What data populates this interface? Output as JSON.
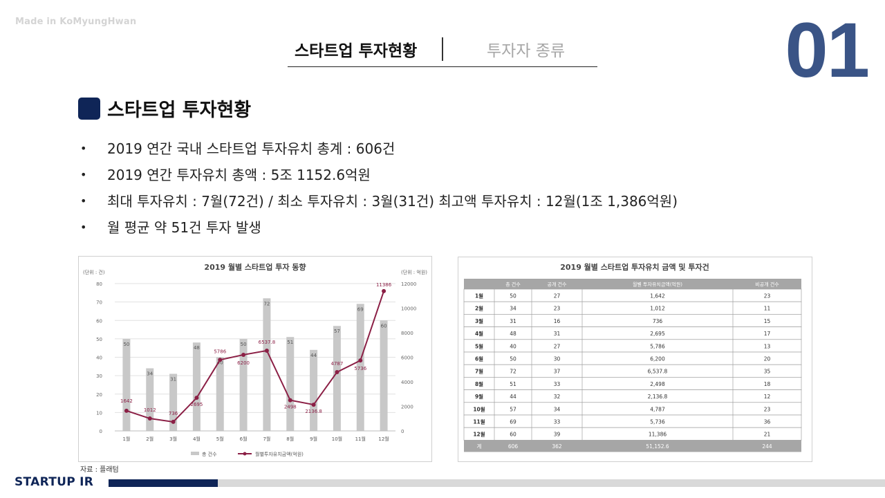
{
  "watermark": "Made in KoMyungHwan",
  "slide_number": "01",
  "tabs": {
    "active": "스타트업 투자현황",
    "inactive": "투자자 종류"
  },
  "section_title": "스타트업 투자현황",
  "bullets": [
    "2019 연간 국내 스타트업 투자유치 총계 : 606건",
    "2019 연간 투자유치 총액 : 5조 1152.6억원",
    "최대 투자유치 : 7월(72건) / 최소 투자유치 : 3월(31건) 최고액 투자유치 : 12월(1조 1,386억원)",
    "월 평균 약 51건 투자 발생"
  ],
  "bullet_glyph": "•",
  "source": "자료 : 플래텀",
  "footer": {
    "label": "STARTUP IR"
  },
  "colors": {
    "navy": "#0f2557",
    "number": "#3a5486",
    "bar": "#c8c8c8",
    "line": "#8b1f45",
    "table_header": "#a6a6a6"
  },
  "chart_data": {
    "type": "bar",
    "title": "2019 월별 스타트업 투자 동향",
    "left_unit": "(단위 : 건)",
    "right_unit": "(단위 : 억원)",
    "categories": [
      "1월",
      "2월",
      "3월",
      "4월",
      "5월",
      "6월",
      "7월",
      "8월",
      "9월",
      "10월",
      "11월",
      "12월"
    ],
    "y_left": {
      "min": 0,
      "max": 80,
      "ticks": [
        0,
        10,
        20,
        30,
        40,
        50,
        60,
        70,
        80
      ]
    },
    "y_right": {
      "min": 0,
      "max": 12000,
      "ticks": [
        0,
        2000,
        4000,
        6000,
        8000,
        10000,
        12000
      ]
    },
    "legend_position": "bottom",
    "series": [
      {
        "name": "총 건수",
        "kind": "bar",
        "axis": "left",
        "values": [
          50,
          34,
          31,
          48,
          40,
          50,
          72,
          51,
          44,
          57,
          69,
          60
        ],
        "labels": [
          "50",
          "34",
          "31",
          "48",
          "40",
          "50",
          "72",
          "51",
          "44",
          "57",
          "69",
          "60"
        ]
      },
      {
        "name": "월별투자유치금액(억원)",
        "kind": "line",
        "axis": "right",
        "values": [
          1642,
          1012,
          736,
          2695,
          5786,
          6200,
          6537.8,
          2498,
          2136.8,
          4787,
          5736,
          11386
        ],
        "labels": [
          "1642",
          "1012",
          "736",
          "2695",
          "5786",
          "6200",
          "6537.8",
          "2498",
          "2136.8",
          "4787",
          "5736",
          "11386"
        ]
      }
    ]
  },
  "table": {
    "title": "2019 월별 스타트업 투자유치 금액 및 투자건",
    "headers": [
      "",
      "총 건수",
      "공개 건수",
      "월별 투자유치금액(억원)",
      "비공개 건수"
    ],
    "rows": [
      [
        "1월",
        "50",
        "27",
        "1,642",
        "23"
      ],
      [
        "2월",
        "34",
        "23",
        "1,012",
        "11"
      ],
      [
        "3월",
        "31",
        "16",
        "736",
        "15"
      ],
      [
        "4월",
        "48",
        "31",
        "2,695",
        "17"
      ],
      [
        "5월",
        "40",
        "27",
        "5,786",
        "13"
      ],
      [
        "6월",
        "50",
        "30",
        "6,200",
        "20"
      ],
      [
        "7월",
        "72",
        "37",
        "6,537.8",
        "35"
      ],
      [
        "8월",
        "51",
        "33",
        "2,498",
        "18"
      ],
      [
        "9월",
        "44",
        "32",
        "2,136.8",
        "12"
      ],
      [
        "10월",
        "57",
        "34",
        "4,787",
        "23"
      ],
      [
        "11월",
        "69",
        "33",
        "5,736",
        "36"
      ],
      [
        "12월",
        "60",
        "39",
        "11,386",
        "21"
      ]
    ],
    "total": [
      "계",
      "606",
      "362",
      "51,152.6",
      "244"
    ]
  }
}
